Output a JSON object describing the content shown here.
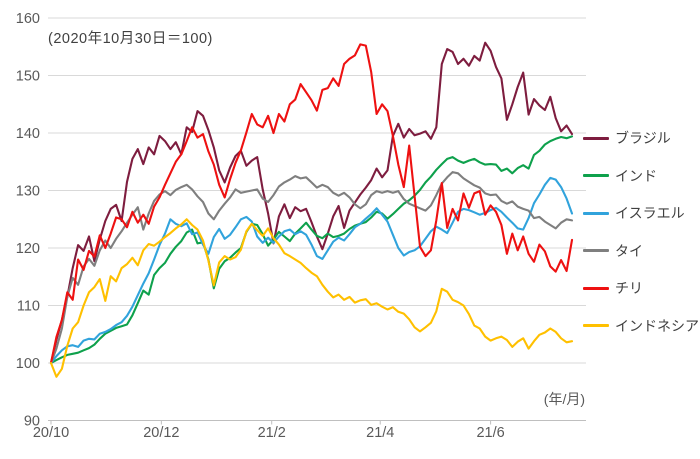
{
  "note": "(2020年10月30日＝100)",
  "axis_unit_label": "(年/月)",
  "chart_data": {
    "type": "line",
    "title": "",
    "note": "(2020年10月30日＝100)",
    "x_unit_label": "(年/月)",
    "ylim": [
      90,
      160
    ],
    "y_ticks": [
      90,
      100,
      110,
      120,
      130,
      140,
      150,
      160
    ],
    "grid": "horizontal",
    "legend_position": "right",
    "x_is_days_from": "2020-10-30",
    "x_max_day": 288,
    "day_step": 3,
    "x_ticks": [
      {
        "label": "20/10",
        "day": 0
      },
      {
        "label": "20/12",
        "day": 61
      },
      {
        "label": "21/2",
        "day": 122
      },
      {
        "label": "21/4",
        "day": 182
      },
      {
        "label": "21/6",
        "day": 243
      }
    ],
    "series": [
      {
        "name": "ブラジル",
        "id": "brazil",
        "color": "#7E1D3F",
        "values": [
          100,
          104,
          107.5,
          111.5,
          116.5,
          120.5,
          119.5,
          122,
          117.7,
          121.5,
          124.7,
          126.8,
          127.5,
          124.7,
          131.5,
          135.5,
          137.2,
          134.6,
          137.5,
          136.3,
          139.5,
          138.6,
          137.2,
          138.4,
          136.3,
          141,
          140.2,
          143.8,
          143,
          140.5,
          137.5,
          133.5,
          131.4,
          134,
          136,
          136.9,
          134.3,
          135.2,
          135.8,
          130.2,
          126,
          120.8,
          125.5,
          127.6,
          125.2,
          127.1,
          126.4,
          126.8,
          124.5,
          122,
          119.8,
          122.5,
          125.5,
          127.3,
          123.5,
          126.5,
          127.9,
          129.3,
          130.5,
          131.8,
          133.8,
          132.3,
          133.5,
          139.5,
          141.6,
          139.2,
          140.7,
          139.6,
          139.9,
          140.3,
          139,
          141,
          152,
          154.6,
          154.1,
          152,
          152.9,
          151.7,
          153.4,
          152.6,
          155.7,
          154.3,
          151.5,
          149.5,
          142.3,
          145,
          148,
          150.5,
          143.2,
          145.9,
          144.8,
          144,
          146.3,
          142.6,
          140.3,
          141.3,
          139.8
        ]
      },
      {
        "name": "インド",
        "id": "india",
        "color": "#0EA14C",
        "values": [
          100,
          100.5,
          101,
          101.4,
          101.6,
          101.8,
          102.2,
          102.6,
          103.2,
          104.2,
          105.1,
          105.6,
          106.1,
          106.4,
          106.7,
          108.3,
          110.4,
          112.6,
          111.9,
          115.3,
          116.5,
          117.4,
          119,
          120.2,
          121.2,
          122.7,
          123.2,
          120.8,
          121,
          118,
          113,
          116.4,
          117.7,
          118.3,
          119.2,
          120,
          122.8,
          124.2,
          124,
          122.4,
          120.4,
          121.5,
          122.8,
          122,
          121.2,
          122.5,
          123.4,
          124.4,
          123.2,
          122.1,
          121.7,
          122.5,
          121.9,
          122.1,
          122.5,
          123.3,
          123.9,
          124.2,
          124.5,
          125.3,
          126.3,
          126,
          125.1,
          125.9,
          126.8,
          127.7,
          128.3,
          129.1,
          130.1,
          131.4,
          132.4,
          133.6,
          134.6,
          135.5,
          135.8,
          135.2,
          134.8,
          135.2,
          135.5,
          134.9,
          134.5,
          134.6,
          134.5,
          133.4,
          133.8,
          133,
          133.9,
          134.4,
          133.8,
          136.2,
          136.9,
          138,
          138.6,
          139,
          139.3,
          139.1,
          139.4
        ]
      },
      {
        "name": "イスラエル",
        "id": "israel",
        "color": "#31A3DC",
        "values": [
          100,
          101.2,
          102.2,
          102.9,
          103.1,
          102.8,
          103.9,
          104.2,
          104.1,
          105.1,
          105.4,
          105.9,
          106.6,
          107.1,
          108.2,
          109.8,
          111.8,
          113.8,
          115.6,
          118,
          120.5,
          122.5,
          125,
          124.2,
          123.8,
          124.3,
          122.4,
          122.7,
          120.6,
          119,
          121.9,
          123.3,
          121.6,
          122.3,
          123.6,
          125,
          125.4,
          124.6,
          122,
          120.9,
          121.8,
          120.9,
          122,
          122.9,
          123.2,
          122.4,
          122.9,
          122.3,
          120.6,
          118.6,
          118.1,
          119.6,
          121.1,
          121.8,
          121.3,
          122.4,
          123.6,
          124.2,
          125.1,
          125.9,
          126.9,
          125.8,
          124.6,
          122.3,
          120,
          118.7,
          119.3,
          119.6,
          120.3,
          121.6,
          122.9,
          123.7,
          123.2,
          122.6,
          124.4,
          126.3,
          126.8,
          126.6,
          126.2,
          125.8,
          126.1,
          126.6,
          127,
          126.3,
          125.3,
          124.4,
          123.4,
          123.2,
          125.2,
          127.8,
          129.3,
          131,
          132.2,
          131.9,
          130.6,
          128.6,
          126
        ]
      },
      {
        "name": "タイ",
        "id": "thailand",
        "color": "#7F7F7F",
        "values": [
          100,
          102.5,
          106,
          111.5,
          114.8,
          113.6,
          116.8,
          118.1,
          116.9,
          119.6,
          121.3,
          120,
          121.6,
          122.9,
          124.4,
          125.8,
          127.1,
          123.2,
          126,
          128.2,
          129.3,
          129.9,
          129.2,
          130.1,
          130.6,
          131,
          130.2,
          129,
          128,
          126,
          125,
          126.5,
          127.7,
          128.8,
          130.2,
          129.6,
          129.8,
          130,
          130.2,
          128.6,
          128,
          129.2,
          130.7,
          131.4,
          131.9,
          132.5,
          132.1,
          132.3,
          131.4,
          130.5,
          131,
          130.6,
          129.6,
          129.1,
          129.6,
          128.8,
          127.6,
          126.9,
          127.6,
          129.2,
          129.9,
          129.6,
          129.9,
          129.6,
          129.9,
          128.5,
          127.7,
          127.3,
          126.9,
          126.5,
          127.4,
          129.2,
          131.2,
          132.3,
          133.2,
          133,
          132.1,
          131.5,
          130.9,
          130.5,
          129.5,
          129.2,
          129.3,
          128.2,
          127.7,
          128.1,
          127.2,
          126.8,
          126.5,
          125.2,
          125.4,
          124.6,
          124,
          123.4,
          124.4,
          125,
          124.8
        ]
      },
      {
        "name": "チリ",
        "id": "chile",
        "color": "#EE1111",
        "values": [
          100,
          104.5,
          107.5,
          112.3,
          111,
          118,
          116.2,
          119.5,
          118.5,
          122.2,
          120,
          122.5,
          125.3,
          125,
          123.6,
          126.3,
          124.4,
          125.8,
          124.2,
          127.2,
          128.8,
          131,
          133,
          135,
          136.3,
          138.6,
          141,
          139.2,
          139.8,
          136.8,
          134.5,
          131,
          128.8,
          132,
          134.8,
          137,
          140.1,
          143.3,
          141.5,
          141,
          143,
          140,
          143.3,
          142,
          145,
          145.8,
          148.5,
          147.1,
          145.7,
          143.9,
          147.5,
          147.8,
          149.5,
          148.2,
          152,
          152.9,
          153.5,
          155.4,
          155.2,
          150.6,
          143.3,
          145,
          143.8,
          139.5,
          134.5,
          130.6,
          137.8,
          129,
          120.2,
          118.6,
          119.6,
          124.8,
          131.3,
          123.5,
          126.8,
          124.8,
          129.5,
          127,
          129.5,
          129.9,
          125.8,
          127.4,
          126.3,
          124,
          119,
          122.5,
          119.6,
          122,
          119,
          117.6,
          120.6,
          119.4,
          116.8,
          115.9,
          117.9,
          116,
          121.4
        ]
      },
      {
        "name": "インドネシア",
        "id": "indonesia",
        "color": "#FFC000",
        "values": [
          100,
          97.6,
          99,
          103,
          106,
          107.1,
          110,
          112.3,
          113.2,
          114.6,
          110.8,
          115.1,
          114.2,
          116.5,
          117.2,
          118.3,
          117,
          119.6,
          120.7,
          120.4,
          121.1,
          121.9,
          122.6,
          123.4,
          124.1,
          125,
          124,
          123.2,
          121.3,
          117.8,
          113.5,
          117.5,
          118.6,
          118,
          118.4,
          119.7,
          122.9,
          124.2,
          123.1,
          122.1,
          123.4,
          121.7,
          120.6,
          119.1,
          118.6,
          118,
          117.4,
          116.5,
          115.7,
          115.1,
          113.6,
          112.4,
          111.4,
          111.9,
          111,
          111.5,
          110.5,
          110.9,
          111.1,
          110.1,
          110.4,
          109.8,
          109.3,
          109.7,
          108.9,
          108.6,
          107.6,
          106.2,
          105.5,
          106.2,
          107,
          109,
          112.9,
          112.4,
          111,
          110.6,
          110,
          108.5,
          106.5,
          106,
          104.6,
          103.9,
          104.3,
          104.6,
          104,
          102.8,
          103.7,
          104.3,
          102.5,
          103.8,
          104.9,
          105.3,
          106,
          105.4,
          104.3,
          103.6,
          103.8
        ]
      }
    ],
    "legend": [
      {
        "label": "ブラジル"
      },
      {
        "label": "インド"
      },
      {
        "label": "イスラエル"
      },
      {
        "label": "タイ"
      },
      {
        "label": "チリ"
      },
      {
        "label": "インドネシア"
      }
    ],
    "style": {
      "grid_color": "#D9D9D9",
      "axis_color": "#BFBFBF",
      "tick_label_color": "#595959",
      "text_color": "#404040",
      "line_width": 2.1
    }
  }
}
